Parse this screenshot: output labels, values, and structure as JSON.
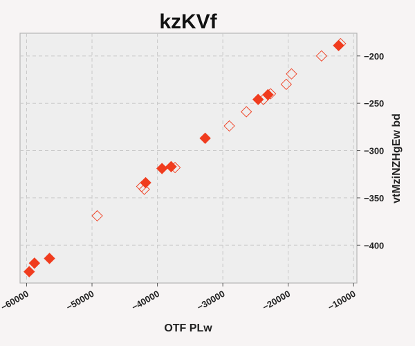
{
  "chart_data": {
    "type": "scatter",
    "title": "kzKVf",
    "xlabel": "OTF PLw",
    "ylabel": "vtMziNZHgEw bd",
    "xlim": [
      -61000,
      -9500
    ],
    "ylim": [
      -440,
      -176
    ],
    "xticks": [
      -60000,
      -50000,
      -40000,
      -30000,
      -20000,
      -10000
    ],
    "yticks": [
      -200,
      -250,
      -300,
      -350,
      -400
    ],
    "xtick_labels": [
      "−60000",
      "−50000",
      "−40000",
      "−30000",
      "−20000",
      "−10000"
    ],
    "ytick_labels": [
      "−200",
      "−250",
      "−300",
      "−350",
      "−400"
    ],
    "grid": true,
    "y_axis_side": "right",
    "marker": "diamond",
    "color": "#f03c1e",
    "series": [
      {
        "style": "filled",
        "points": [
          {
            "x": -59600,
            "y": -428
          },
          {
            "x": -58800,
            "y": -419
          },
          {
            "x": -56500,
            "y": -414
          },
          {
            "x": -41800,
            "y": -334
          },
          {
            "x": -39300,
            "y": -319
          },
          {
            "x": -37900,
            "y": -317
          },
          {
            "x": -32700,
            "y": -287
          },
          {
            "x": -24600,
            "y": -246
          },
          {
            "x": -23100,
            "y": -241
          },
          {
            "x": -12300,
            "y": -189
          }
        ]
      },
      {
        "style": "open",
        "points": [
          {
            "x": -49200,
            "y": -369
          },
          {
            "x": -42400,
            "y": -338
          },
          {
            "x": -42000,
            "y": -341
          },
          {
            "x": -37300,
            "y": -318
          },
          {
            "x": -29000,
            "y": -274
          },
          {
            "x": -26400,
            "y": -259
          },
          {
            "x": -23800,
            "y": -246
          },
          {
            "x": -22700,
            "y": -240
          },
          {
            "x": -20300,
            "y": -230
          },
          {
            "x": -19500,
            "y": -219
          },
          {
            "x": -14900,
            "y": -200
          },
          {
            "x": -12000,
            "y": -187
          }
        ]
      }
    ]
  }
}
